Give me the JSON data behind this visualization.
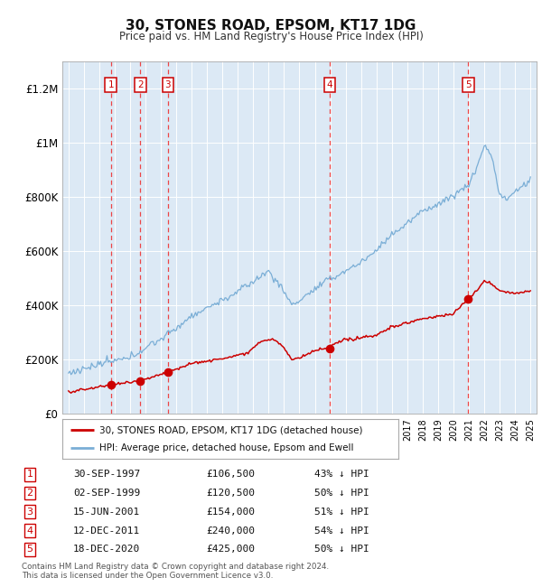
{
  "title": "30, STONES ROAD, EPSOM, KT17 1DG",
  "subtitle": "Price paid vs. HM Land Registry's House Price Index (HPI)",
  "ylim": [
    0,
    1300000
  ],
  "yticks": [
    0,
    200000,
    400000,
    600000,
    800000,
    1000000,
    1200000
  ],
  "ytick_labels": [
    "£0",
    "£200K",
    "£400K",
    "£600K",
    "£800K",
    "£1M",
    "£1.2M"
  ],
  "plot_bg_color": "#dce9f5",
  "grid_color": "#ffffff",
  "red_line_color": "#cc0000",
  "blue_line_color": "#7aaed6",
  "sale_points": [
    {
      "year": 1997.75,
      "price": 106500,
      "label": "1"
    },
    {
      "year": 1999.67,
      "price": 120500,
      "label": "2"
    },
    {
      "year": 2001.46,
      "price": 154000,
      "label": "3"
    },
    {
      "year": 2011.95,
      "price": 240000,
      "label": "4"
    },
    {
      "year": 2020.96,
      "price": 425000,
      "label": "5"
    }
  ],
  "table_rows": [
    [
      "1",
      "30-SEP-1997",
      "£106,500",
      "43% ↓ HPI"
    ],
    [
      "2",
      "02-SEP-1999",
      "£120,500",
      "50% ↓ HPI"
    ],
    [
      "3",
      "15-JUN-2001",
      "£154,000",
      "51% ↓ HPI"
    ],
    [
      "4",
      "12-DEC-2011",
      "£240,000",
      "54% ↓ HPI"
    ],
    [
      "5",
      "18-DEC-2020",
      "£425,000",
      "50% ↓ HPI"
    ]
  ],
  "legend_entries": [
    {
      "label": "30, STONES ROAD, EPSOM, KT17 1DG (detached house)",
      "color": "#cc0000"
    },
    {
      "label": "HPI: Average price, detached house, Epsom and Ewell",
      "color": "#7aaed6"
    }
  ],
  "footer": "Contains HM Land Registry data © Crown copyright and database right 2024.\nThis data is licensed under the Open Government Licence v3.0."
}
